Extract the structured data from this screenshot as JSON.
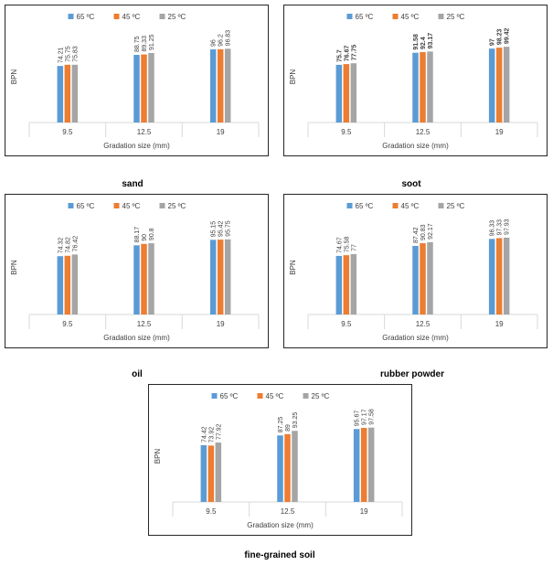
{
  "legend_labels": [
    "65 ºC",
    "45 ºC",
    "25 ºC"
  ],
  "series_colors": [
    "#5B9BD5",
    "#ED7D31",
    "#A5A5A5"
  ],
  "chart_data": [
    {
      "type": "bar",
      "caption": "sand",
      "categories": [
        "9.5",
        "12.5",
        "19"
      ],
      "xlabel": "Gradation size (mm)",
      "ylabel": "BPN",
      "ylim": [
        0,
        120
      ],
      "grid": false,
      "legend": "top",
      "series": [
        {
          "name": "65 ºC",
          "values": [
            74.21,
            88.75,
            96
          ]
        },
        {
          "name": "45 ºC",
          "values": [
            75.75,
            89.33,
            96.2
          ]
        },
        {
          "name": "25 ºC",
          "values": [
            75.83,
            91.25,
            96.83
          ]
        }
      ],
      "value_labels": [
        [
          "74.21",
          "88.75",
          "96"
        ],
        [
          "75.75",
          "89.33",
          "96.2"
        ],
        [
          "75.83",
          "91.25",
          "96.83"
        ]
      ]
    },
    {
      "type": "bar",
      "caption": "soot",
      "categories": [
        "9.5",
        "12.5",
        "19"
      ],
      "xlabel": "Gradation size (mm)",
      "ylabel": "BPN",
      "ylim": [
        0,
        120
      ],
      "grid": false,
      "legend": "top",
      "bold_labels": true,
      "series": [
        {
          "name": "65 ºC",
          "values": [
            75.7,
            91.58,
            97
          ]
        },
        {
          "name": "45 ºC",
          "values": [
            76.67,
            92.4,
            98.23
          ]
        },
        {
          "name": "25 ºC",
          "values": [
            77.75,
            93.17,
            99.42
          ]
        }
      ],
      "value_labels": [
        [
          "75.7",
          "91.58",
          "97"
        ],
        [
          "76.67",
          "92.4",
          "98.23"
        ],
        [
          "77.75",
          "93.17",
          "99.42"
        ]
      ]
    },
    {
      "type": "bar",
      "caption": "oil",
      "categories": [
        "9.5",
        "12.5",
        "19"
      ],
      "xlabel": "Gradation size (mm)",
      "ylabel": "BPN",
      "ylim": [
        0,
        120
      ],
      "grid": false,
      "legend": "top",
      "series": [
        {
          "name": "65 ºC",
          "values": [
            74.32,
            88.17,
            95.15
          ]
        },
        {
          "name": "45 ºC",
          "values": [
            74.82,
            90,
            95.42
          ]
        },
        {
          "name": "25 ºC",
          "values": [
            76.42,
            90.8,
            95.75
          ]
        }
      ],
      "value_labels": [
        [
          "74.32",
          "88.17",
          "95.15"
        ],
        [
          "74.82",
          "90",
          "95.42"
        ],
        [
          "76.42",
          "90.8",
          "95.75"
        ]
      ]
    },
    {
      "type": "bar",
      "caption": "rubber powder",
      "categories": [
        "9.5",
        "12.5",
        "19"
      ],
      "xlabel": "Gradation size (mm)",
      "ylabel": "BPN",
      "ylim": [
        0,
        120
      ],
      "grid": false,
      "legend": "top",
      "series": [
        {
          "name": "65 ºC",
          "values": [
            74.67,
            87.42,
            96.33
          ]
        },
        {
          "name": "45 ºC",
          "values": [
            75.58,
            90.83,
            97.33
          ]
        },
        {
          "name": "25 ºC",
          "values": [
            77,
            92.17,
            97.93
          ]
        }
      ],
      "value_labels": [
        [
          "74.67",
          "87.42",
          "96.33"
        ],
        [
          "75.58",
          "90.83",
          "97.33"
        ],
        [
          "77",
          "92.17",
          "97.93"
        ]
      ]
    },
    {
      "type": "bar",
      "caption": "fine-grained soil",
      "categories": [
        "9.5",
        "12.5",
        "19"
      ],
      "xlabel": "Gradation size (mm)",
      "ylabel": "BPN",
      "ylim": [
        0,
        120
      ],
      "grid": false,
      "legend": "top",
      "series": [
        {
          "name": "65 ºC",
          "values": [
            74.42,
            87.25,
            95.67
          ]
        },
        {
          "name": "45 ºC",
          "values": [
            73.92,
            89,
            97.17
          ]
        },
        {
          "name": "25 ºC",
          "values": [
            77.92,
            93.25,
            97.58
          ]
        }
      ],
      "value_labels": [
        [
          "74.42",
          "87.25",
          "95.67"
        ],
        [
          "73.92",
          "89",
          "97.17"
        ],
        [
          "77.92",
          "93.25",
          "97.58"
        ]
      ]
    }
  ]
}
